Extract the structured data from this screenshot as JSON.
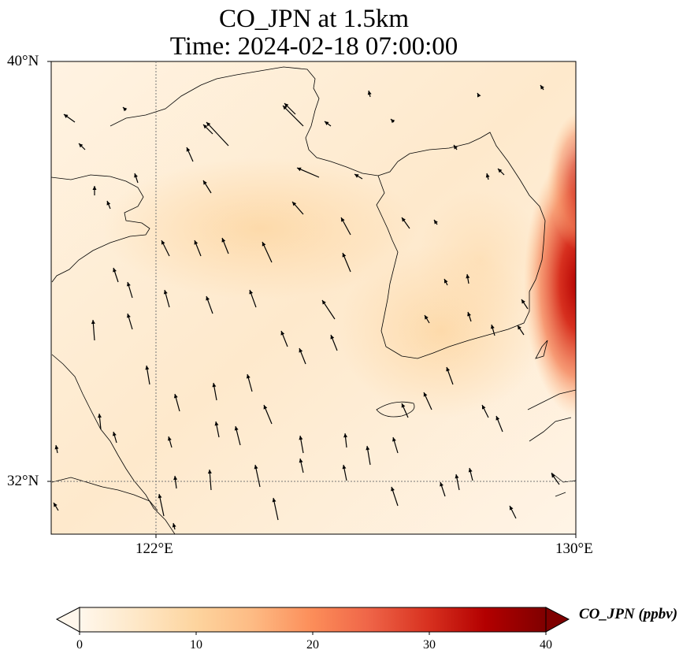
{
  "title": {
    "line1": "CO_JPN at 1.5km",
    "line2": "Time: 2024-02-18 07:00:00"
  },
  "map": {
    "lat_range": [
      31,
      40
    ],
    "lon_range": [
      120,
      130
    ],
    "lat_ticks": [
      {
        "value": 40,
        "label": "40°N"
      },
      {
        "value": 32,
        "label": "32°N"
      }
    ],
    "lon_ticks": [
      {
        "value": 122,
        "label": "122°E"
      },
      {
        "value": 130,
        "label": "130°E"
      }
    ],
    "gridlines": "dotted",
    "field_colormap": "OrRd",
    "wind_vectors": "black arrows, predominantly pointing north-northwest"
  },
  "colorbar": {
    "label": "CO_JPN (ppbv)",
    "min": 0,
    "max": 40,
    "extend": "both",
    "ticks": [
      "0",
      "10",
      "20",
      "30",
      "40"
    ],
    "colors": [
      "#fff7ec",
      "#fee8c8",
      "#fdd49e",
      "#fdbb84",
      "#fc8d59",
      "#ef6548",
      "#d7301f",
      "#b30000",
      "#7f0000"
    ]
  }
}
